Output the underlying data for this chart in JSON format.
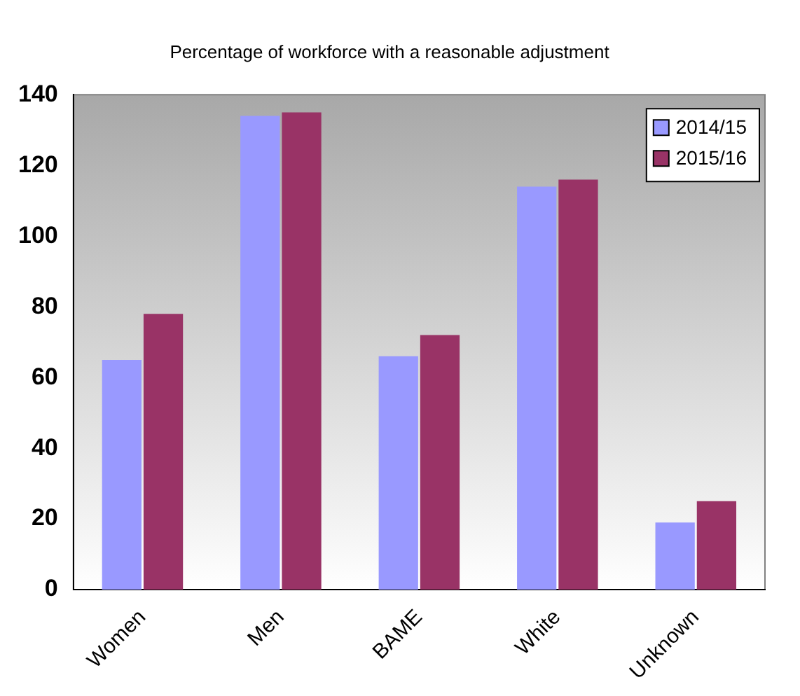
{
  "chart_data": {
    "type": "bar",
    "title": "Percentage of workforce with a reasonable adjustment",
    "categories": [
      "Women",
      "Men",
      "BAME",
      "White",
      "Unknown"
    ],
    "series": [
      {
        "name": "2014/15",
        "color": "#9999ff",
        "values": [
          65,
          134,
          66,
          114,
          19
        ]
      },
      {
        "name": "2015/16",
        "color": "#993366",
        "values": [
          78,
          135,
          72,
          116,
          25
        ]
      }
    ],
    "ylim": [
      0,
      140
    ],
    "yticks": [
      0,
      20,
      40,
      60,
      80,
      100,
      120,
      140
    ],
    "grid": false,
    "legend": "top right"
  }
}
